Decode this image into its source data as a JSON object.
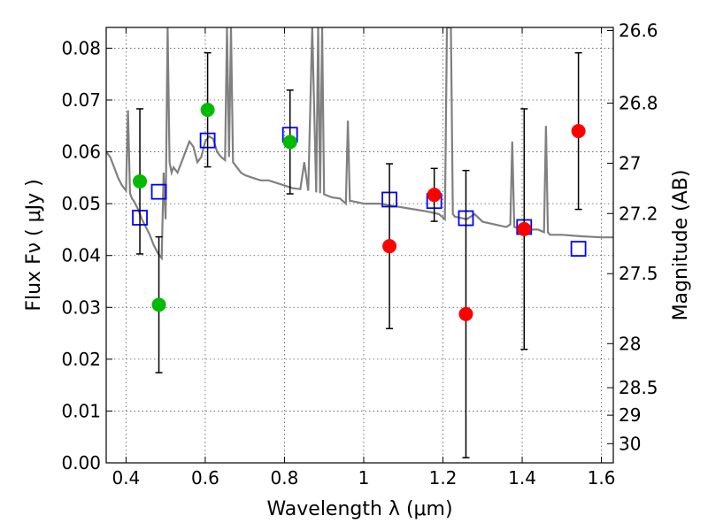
{
  "chart_data": {
    "type": "scatter",
    "xlabel": "Wavelength  λ (μm)",
    "ylabel": "Flux  Fν  ( μJy )",
    "ylabel_right": "Magnitude (AB)",
    "xlim": [
      0.35,
      1.63
    ],
    "ylim": [
      0.0,
      0.084
    ],
    "x_ticks": [
      0.4,
      0.6,
      0.8,
      1.0,
      1.2,
      1.4,
      1.6
    ],
    "x_tick_labels": [
      "0.4",
      "0.6",
      "0.8",
      "1",
      "1.2",
      "1.4",
      "1.6"
    ],
    "y_ticks": [
      0.0,
      0.01,
      0.02,
      0.03,
      0.04,
      0.05,
      0.06,
      0.07,
      0.08
    ],
    "y_tick_labels": [
      "0.00",
      "0.01",
      "0.02",
      "0.03",
      "0.04",
      "0.05",
      "0.06",
      "0.07",
      "0.08"
    ],
    "right_ticks": [
      {
        "label": "26.6",
        "flux": 0.0834
      },
      {
        "label": "26.8",
        "flux": 0.0694
      },
      {
        "label": "27",
        "flux": 0.0578
      },
      {
        "label": "27.2",
        "flux": 0.0481
      },
      {
        "label": "27.5",
        "flux": 0.0365
      },
      {
        "label": "28",
        "flux": 0.023
      },
      {
        "label": "28.5",
        "flux": 0.0145
      },
      {
        "label": "29",
        "flux": 0.0092
      },
      {
        "label": "30",
        "flux": 0.0037
      }
    ],
    "series": [
      {
        "name": "model SED",
        "kind": "line",
        "color": "#808080",
        "x": [
          0.35,
          0.36,
          0.37,
          0.38,
          0.39,
          0.4,
          0.405,
          0.41,
          0.415,
          0.42,
          0.43,
          0.44,
          0.45,
          0.46,
          0.47,
          0.48,
          0.49,
          0.495,
          0.5,
          0.505,
          0.51,
          0.515,
          0.52,
          0.53,
          0.54,
          0.55,
          0.56,
          0.57,
          0.58,
          0.59,
          0.6,
          0.61,
          0.62,
          0.63,
          0.64,
          0.65,
          0.655,
          0.66,
          0.665,
          0.67,
          0.68,
          0.69,
          0.7,
          0.72,
          0.74,
          0.76,
          0.78,
          0.8,
          0.82,
          0.84,
          0.85,
          0.86,
          0.87,
          0.88,
          0.885,
          0.89,
          0.895,
          0.9,
          0.91,
          0.92,
          0.94,
          0.955,
          0.96,
          0.965,
          0.97,
          1.0,
          1.04,
          1.08,
          1.12,
          1.16,
          1.19,
          1.205,
          1.21,
          1.215,
          1.22,
          1.225,
          1.23,
          1.26,
          1.28,
          1.3,
          1.33,
          1.36,
          1.37,
          1.375,
          1.38,
          1.4,
          1.44,
          1.455,
          1.46,
          1.465,
          1.47,
          1.5,
          1.55,
          1.6,
          1.63
        ],
        "y": [
          0.06,
          0.059,
          0.057,
          0.055,
          0.0535,
          0.0525,
          0.068,
          0.052,
          0.051,
          0.0505,
          0.049,
          0.047,
          0.0455,
          0.044,
          0.042,
          0.0405,
          0.0395,
          0.056,
          0.047,
          0.084,
          0.058,
          0.056,
          0.057,
          0.056,
          0.058,
          0.06,
          0.062,
          0.061,
          0.058,
          0.059,
          0.062,
          0.063,
          0.0625,
          0.06,
          0.059,
          0.0584,
          0.084,
          0.059,
          0.084,
          0.058,
          0.057,
          0.056,
          0.0555,
          0.055,
          0.0545,
          0.0545,
          0.054,
          0.0535,
          0.053,
          0.0528,
          0.058,
          0.0525,
          0.084,
          0.0522,
          0.084,
          0.052,
          0.084,
          0.0518,
          0.0515,
          0.0512,
          0.051,
          0.05,
          0.066,
          0.0505,
          0.0505,
          0.05,
          0.05,
          0.0495,
          0.049,
          0.0485,
          0.048,
          0.047,
          0.084,
          0.084,
          0.084,
          0.048,
          0.0475,
          0.047,
          0.048,
          0.0465,
          0.046,
          0.0455,
          0.046,
          0.062,
          0.0455,
          0.045,
          0.045,
          0.0445,
          0.065,
          0.0445,
          0.044,
          0.044,
          0.0437,
          0.0435,
          0.0435
        ]
      },
      {
        "name": "model photometry",
        "kind": "open-square",
        "color": "#0000ff",
        "x": [
          0.435,
          0.483,
          0.606,
          0.814,
          1.065,
          1.178,
          1.258,
          1.405,
          1.542
        ],
        "y": [
          0.0473,
          0.0523,
          0.0622,
          0.0633,
          0.0508,
          0.0505,
          0.0472,
          0.0455,
          0.0413
        ]
      },
      {
        "name": "observed (optical)",
        "kind": "filled-circle",
        "color": "#00bb00",
        "x": [
          0.435,
          0.483,
          0.606,
          0.814
        ],
        "y": [
          0.0543,
          0.0305,
          0.0681,
          0.0619
        ],
        "yerr": [
          0.014,
          0.0131,
          0.011,
          0.01
        ]
      },
      {
        "name": "observed (infrared)",
        "kind": "filled-circle",
        "color": "#ff0000",
        "x": [
          1.065,
          1.178,
          1.258,
          1.405,
          1.542
        ],
        "y": [
          0.0418,
          0.0517,
          0.0287,
          0.0451,
          0.064
        ],
        "yerr": [
          0.0159,
          0.0051,
          0.0277,
          0.0232,
          0.0151
        ]
      }
    ]
  }
}
